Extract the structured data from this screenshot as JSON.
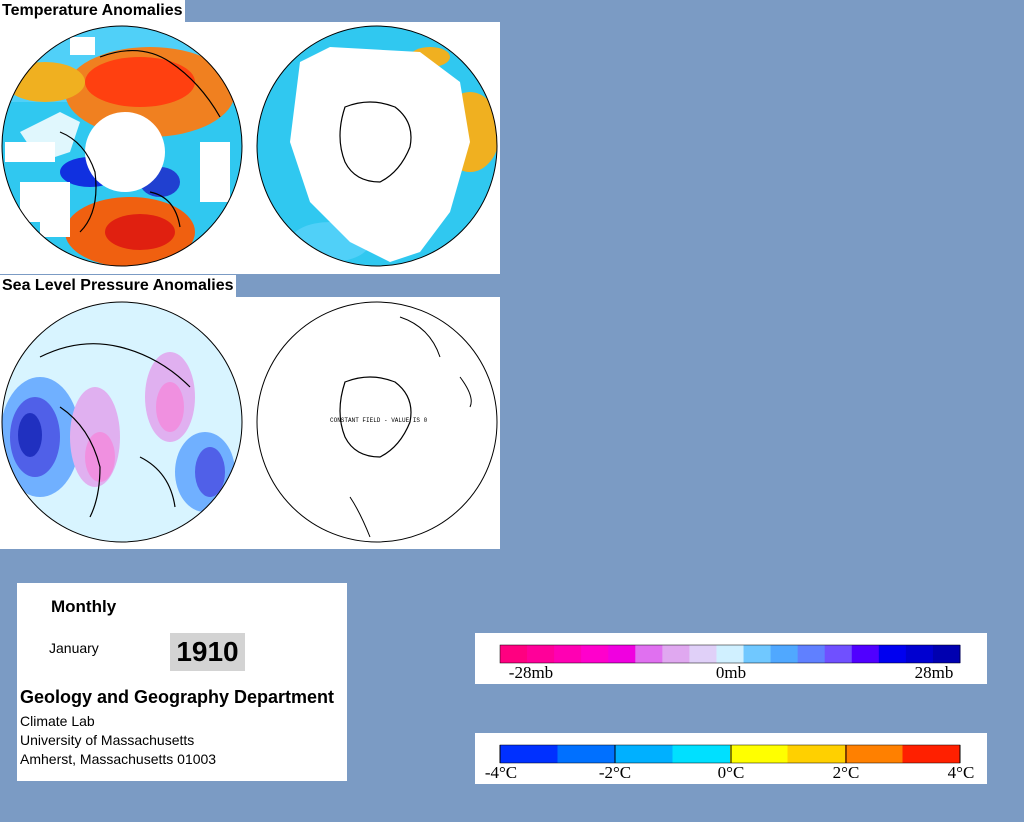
{
  "temperature": {
    "title": "Temperature Anomalies"
  },
  "pressure": {
    "title": "Sea Level Pressure Anomalies",
    "constant_note": "CONSTANT FIELD - VALUE IS 0"
  },
  "info": {
    "period": "Monthly",
    "month": "January",
    "year": "1910",
    "department": "Geology and Geography Department",
    "lab": "Climate Lab",
    "university": "University of Massachusetts",
    "address": "Amherst, Massachusetts 01003"
  },
  "pressure_legend": {
    "labels": [
      "-28mb",
      "0mb",
      "28mb"
    ],
    "colors": [
      "#ff0080",
      "#ff0099",
      "#ff00b3",
      "#ff00cc",
      "#f000e0",
      "#e070f0",
      "#e0a8f0",
      "#e0d0f8",
      "#d0f0ff",
      "#70c8ff",
      "#50a8ff",
      "#6080ff",
      "#7050ff",
      "#5000ff",
      "#0000f0",
      "#0000d0",
      "#0000b0"
    ]
  },
  "temperature_legend": {
    "labels": [
      "-4°C",
      "-2°C",
      "0°C",
      "2°C",
      "4°C"
    ],
    "colors": [
      "#0030ff",
      "#0070ff",
      "#00b0ff",
      "#00e0ff",
      "#ffff00",
      "#ffd000",
      "#ff8000",
      "#ff2000"
    ]
  }
}
